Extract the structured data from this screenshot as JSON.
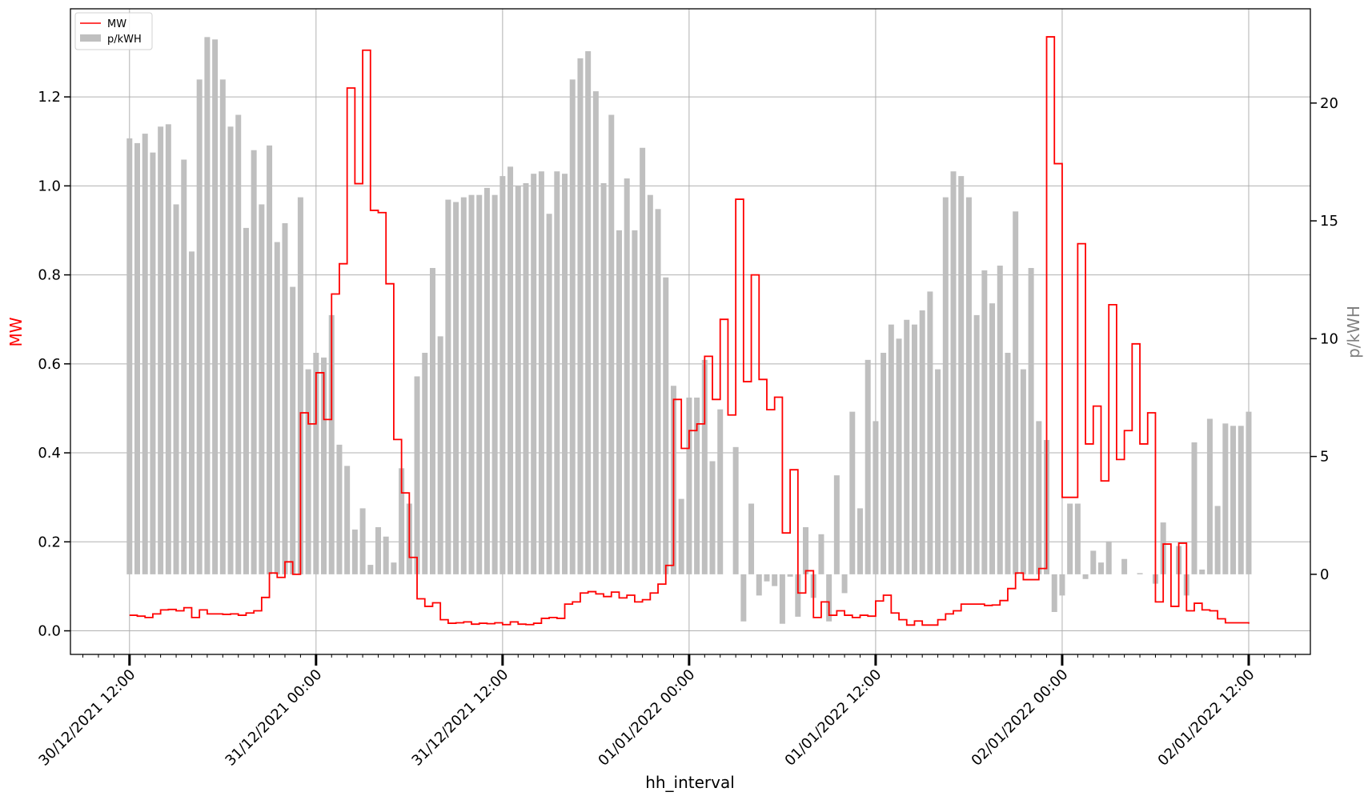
{
  "chart_data": {
    "type": "bar+step-line (dual axis)",
    "xlabel": "hh_interval",
    "ylabel_left": "MW",
    "ylabel_right": "p/kWH",
    "ylim_left": [
      -0.053,
      1.398
    ],
    "ylim_right": [
      -3.4,
      24.0
    ],
    "xlim": [
      "30/12/2021 08:12",
      "02/01/2022 15:58"
    ],
    "grid": true,
    "legend_position": "top-left",
    "colors": {
      "MW": "#ff0000",
      "p/kWH": "#bfbfbf",
      "grid": "#b0b0b0"
    },
    "x_ticks": [
      "30/12/2021 12:00",
      "31/12/2021 00:00",
      "31/12/2021 12:00",
      "01/01/2022 00:00",
      "01/01/2022 12:00",
      "02/01/2022 00:00",
      "02/01/2022 12:00"
    ],
    "y_ticks_left": [
      "0.0",
      "0.2",
      "0.4",
      "0.6",
      "0.8",
      "1.0",
      "1.2"
    ],
    "y_ticks_right": [
      "0",
      "5",
      "10",
      "15",
      "20"
    ],
    "x": [
      "30/12/2021 12:00",
      "30/12/2021 12:30",
      "30/12/2021 13:00",
      "30/12/2021 13:30",
      "30/12/2021 14:00",
      "30/12/2021 14:30",
      "30/12/2021 15:00",
      "30/12/2021 15:30",
      "30/12/2021 16:00",
      "30/12/2021 16:30",
      "30/12/2021 17:00",
      "30/12/2021 17:30",
      "30/12/2021 18:00",
      "30/12/2021 18:30",
      "30/12/2021 19:00",
      "30/12/2021 19:30",
      "30/12/2021 20:00",
      "30/12/2021 20:30",
      "30/12/2021 21:00",
      "30/12/2021 21:30",
      "30/12/2021 22:00",
      "30/12/2021 22:30",
      "30/12/2021 23:00",
      "30/12/2021 23:30",
      "31/12/2021 00:00",
      "31/12/2021 00:30",
      "31/12/2021 01:00",
      "31/12/2021 01:30",
      "31/12/2021 02:00",
      "31/12/2021 02:30",
      "31/12/2021 03:00",
      "31/12/2021 03:30",
      "31/12/2021 04:00",
      "31/12/2021 04:30",
      "31/12/2021 05:00",
      "31/12/2021 05:30",
      "31/12/2021 06:00",
      "31/12/2021 06:30",
      "31/12/2021 07:00",
      "31/12/2021 07:30",
      "31/12/2021 08:00",
      "31/12/2021 08:30",
      "31/12/2021 09:00",
      "31/12/2021 09:30",
      "31/12/2021 10:00",
      "31/12/2021 10:30",
      "31/12/2021 11:00",
      "31/12/2021 11:30",
      "31/12/2021 12:00",
      "31/12/2021 12:30",
      "31/12/2021 13:00",
      "31/12/2021 13:30",
      "31/12/2021 14:00",
      "31/12/2021 14:30",
      "31/12/2021 15:00",
      "31/12/2021 15:30",
      "31/12/2021 16:00",
      "31/12/2021 16:30",
      "31/12/2021 17:00",
      "31/12/2021 17:30",
      "31/12/2021 18:00",
      "31/12/2021 18:30",
      "31/12/2021 19:00",
      "31/12/2021 19:30",
      "31/12/2021 20:00",
      "31/12/2021 20:30",
      "31/12/2021 21:00",
      "31/12/2021 21:30",
      "31/12/2021 22:00",
      "31/12/2021 22:30",
      "31/12/2021 23:00",
      "31/12/2021 23:30",
      "01/01/2022 00:00",
      "01/01/2022 00:30",
      "01/01/2022 01:00",
      "01/01/2022 01:30",
      "01/01/2022 02:00",
      "01/01/2022 02:30",
      "01/01/2022 03:00",
      "01/01/2022 03:30",
      "01/01/2022 04:00",
      "01/01/2022 04:30",
      "01/01/2022 05:00",
      "01/01/2022 05:30",
      "01/01/2022 06:00",
      "01/01/2022 06:30",
      "01/01/2022 07:00",
      "01/01/2022 07:30",
      "01/01/2022 08:00",
      "01/01/2022 08:30",
      "01/01/2022 09:00",
      "01/01/2022 09:30",
      "01/01/2022 10:00",
      "01/01/2022 10:30",
      "01/01/2022 11:00",
      "01/01/2022 11:30",
      "01/01/2022 12:00",
      "01/01/2022 12:30",
      "01/01/2022 13:00",
      "01/01/2022 13:30",
      "01/01/2022 14:00",
      "01/01/2022 14:30",
      "01/01/2022 15:00",
      "01/01/2022 15:30",
      "01/01/2022 16:00",
      "01/01/2022 16:30",
      "01/01/2022 17:00",
      "01/01/2022 17:30",
      "01/01/2022 18:00",
      "01/01/2022 18:30",
      "01/01/2022 19:00",
      "01/01/2022 19:30",
      "01/01/2022 20:00",
      "01/01/2022 20:30",
      "01/01/2022 21:00",
      "01/01/2022 21:30",
      "01/01/2022 22:00",
      "01/01/2022 22:30",
      "01/01/2022 23:00",
      "01/01/2022 23:30",
      "02/01/2022 00:00",
      "02/01/2022 00:30",
      "02/01/2022 01:00",
      "02/01/2022 01:30",
      "02/01/2022 02:00",
      "02/01/2022 02:30",
      "02/01/2022 03:00",
      "02/01/2022 03:30",
      "02/01/2022 04:00",
      "02/01/2022 04:30",
      "02/01/2022 05:00",
      "02/01/2022 05:30",
      "02/01/2022 06:00",
      "02/01/2022 06:30",
      "02/01/2022 07:00",
      "02/01/2022 07:30",
      "02/01/2022 08:00",
      "02/01/2022 08:30",
      "02/01/2022 09:00",
      "02/01/2022 09:30",
      "02/01/2022 10:00",
      "02/01/2022 10:30",
      "02/01/2022 11:00",
      "02/01/2022 11:30",
      "02/01/2022 12:00"
    ],
    "series": [
      {
        "name": "MW",
        "type": "step",
        "axis": "left",
        "values": [
          0.035,
          0.033,
          0.03,
          0.038,
          0.047,
          0.048,
          0.045,
          0.052,
          0.03,
          0.047,
          0.038,
          0.038,
          0.037,
          0.038,
          0.035,
          0.04,
          0.045,
          0.075,
          0.13,
          0.12,
          0.155,
          0.127,
          0.49,
          0.465,
          0.58,
          0.475,
          0.757,
          0.825,
          1.22,
          1.005,
          1.305,
          0.945,
          0.94,
          0.78,
          0.43,
          0.31,
          0.165,
          0.072,
          0.055,
          0.063,
          0.025,
          0.017,
          0.018,
          0.02,
          0.015,
          0.017,
          0.016,
          0.018,
          0.014,
          0.02,
          0.015,
          0.014,
          0.017,
          0.028,
          0.03,
          0.028,
          0.06,
          0.065,
          0.085,
          0.088,
          0.083,
          0.077,
          0.087,
          0.074,
          0.08,
          0.065,
          0.07,
          0.085,
          0.105,
          0.147,
          0.52,
          0.41,
          0.45,
          0.465,
          0.617,
          0.52,
          0.7,
          0.485,
          0.97,
          0.56,
          0.8,
          0.565,
          0.497,
          0.525,
          0.22,
          0.362,
          0.085,
          0.135,
          0.03,
          0.065,
          0.035,
          0.045,
          0.035,
          0.03,
          0.035,
          0.033,
          0.067,
          0.08,
          0.04,
          0.025,
          0.013,
          0.022,
          0.013,
          0.013,
          0.025,
          0.038,
          0.045,
          0.06,
          0.06,
          0.06,
          0.057,
          0.058,
          0.068,
          0.095,
          0.13,
          0.115,
          0.115,
          0.14,
          1.335,
          1.05,
          0.3,
          0.3,
          0.87,
          0.42,
          0.505,
          0.337,
          0.733,
          0.385,
          0.45,
          0.645,
          0.42,
          0.49,
          0.065,
          0.195,
          0.055,
          0.197,
          0.045,
          0.062,
          0.047,
          0.045,
          0.027,
          0.018,
          0.018,
          0.018,
          0.016
        ]
      },
      {
        "name": "p/kWH",
        "type": "bar",
        "axis": "right",
        "values": [
          18.5,
          18.3,
          18.7,
          17.9,
          19.0,
          19.1,
          15.7,
          17.6,
          13.7,
          21.0,
          22.8,
          22.7,
          21.0,
          19.0,
          19.5,
          14.7,
          18.0,
          15.7,
          18.2,
          14.1,
          14.9,
          12.2,
          16.0,
          8.7,
          9.4,
          9.2,
          11.0,
          5.5,
          4.6,
          1.9,
          2.8,
          0.4,
          2.0,
          1.6,
          0.5,
          4.5,
          3.0,
          8.4,
          9.4,
          13.0,
          10.1,
          15.9,
          15.8,
          16.0,
          16.1,
          16.1,
          16.4,
          16.1,
          16.9,
          17.3,
          16.5,
          16.6,
          17.0,
          17.1,
          15.3,
          17.1,
          17.0,
          21.0,
          21.9,
          22.2,
          20.5,
          16.6,
          19.5,
          14.6,
          16.8,
          14.6,
          18.1,
          16.1,
          15.5,
          12.6,
          8.0,
          3.2,
          7.5,
          7.5,
          9.1,
          4.8,
          7.0,
          0.0,
          5.4,
          -2.0,
          3.0,
          -0.9,
          -0.3,
          -0.5,
          -2.1,
          -0.1,
          -1.8,
          2.0,
          -1.0,
          1.7,
          -2.0,
          4.2,
          -0.8,
          6.9,
          2.8,
          9.1,
          6.5,
          9.4,
          10.6,
          10.0,
          10.8,
          10.6,
          11.2,
          12.0,
          8.7,
          16.0,
          17.1,
          16.9,
          16.0,
          11.0,
          12.9,
          11.5,
          13.1,
          9.4,
          15.4,
          8.7,
          13.0,
          6.5,
          5.7,
          -1.6,
          -0.9,
          3.0,
          3.0,
          -0.2,
          1.0,
          0.5,
          1.4,
          0.0,
          0.65,
          0.0,
          0.05,
          0.0,
          -0.4,
          2.2,
          0.0,
          1.2,
          -0.9,
          5.6,
          0.2,
          6.6,
          2.9,
          6.4,
          6.3,
          6.3,
          6.9
        ]
      }
    ]
  }
}
